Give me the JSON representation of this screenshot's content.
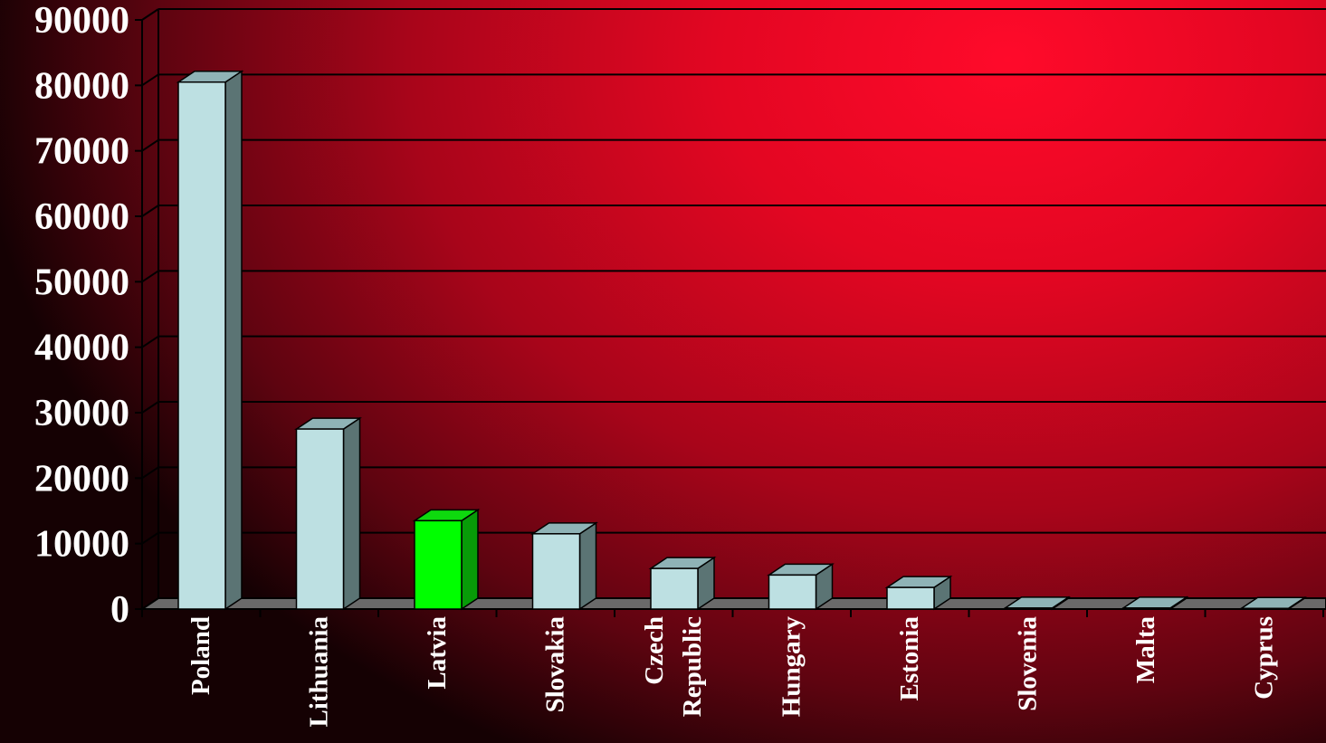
{
  "chart_data": {
    "type": "bar",
    "style": "3d-column",
    "categories": [
      "Poland",
      "Lithuania",
      "Latvia",
      "Slovakia",
      "Czech Republic",
      "Hungary",
      "Estonia",
      "Slovenia",
      "Malta",
      "Cyprus"
    ],
    "category_lines": [
      [
        "Poland"
      ],
      [
        "Lithuania"
      ],
      [
        "Latvia"
      ],
      [
        "Slovakia"
      ],
      [
        "Czech",
        "Republic"
      ],
      [
        "Hungary"
      ],
      [
        "Estonia"
      ],
      [
        "Slovenia"
      ],
      [
        "Malta"
      ],
      [
        "Cyprus"
      ]
    ],
    "values": [
      80500,
      27500,
      13500,
      11500,
      6200,
      5200,
      3300,
      150,
      150,
      100
    ],
    "highlight_index": 2,
    "ylim": [
      0,
      90000
    ],
    "yticks": [
      "0",
      "10000",
      "20000",
      "30000",
      "40000",
      "50000",
      "60000",
      "70000",
      "80000",
      "90000"
    ],
    "grid": true,
    "title": "",
    "xlabel": "",
    "ylabel": "",
    "colors": {
      "bar_front": "#bde0e2",
      "bar_top": "#8fb3b6",
      "bar_side": "#5b7474",
      "highlight_front": "#00ff00",
      "highlight_top": "#0ed90e",
      "highlight_side": "#089b08",
      "floor": "#6a6a6a",
      "gridline": "#000000",
      "text": "#ffffff"
    }
  }
}
